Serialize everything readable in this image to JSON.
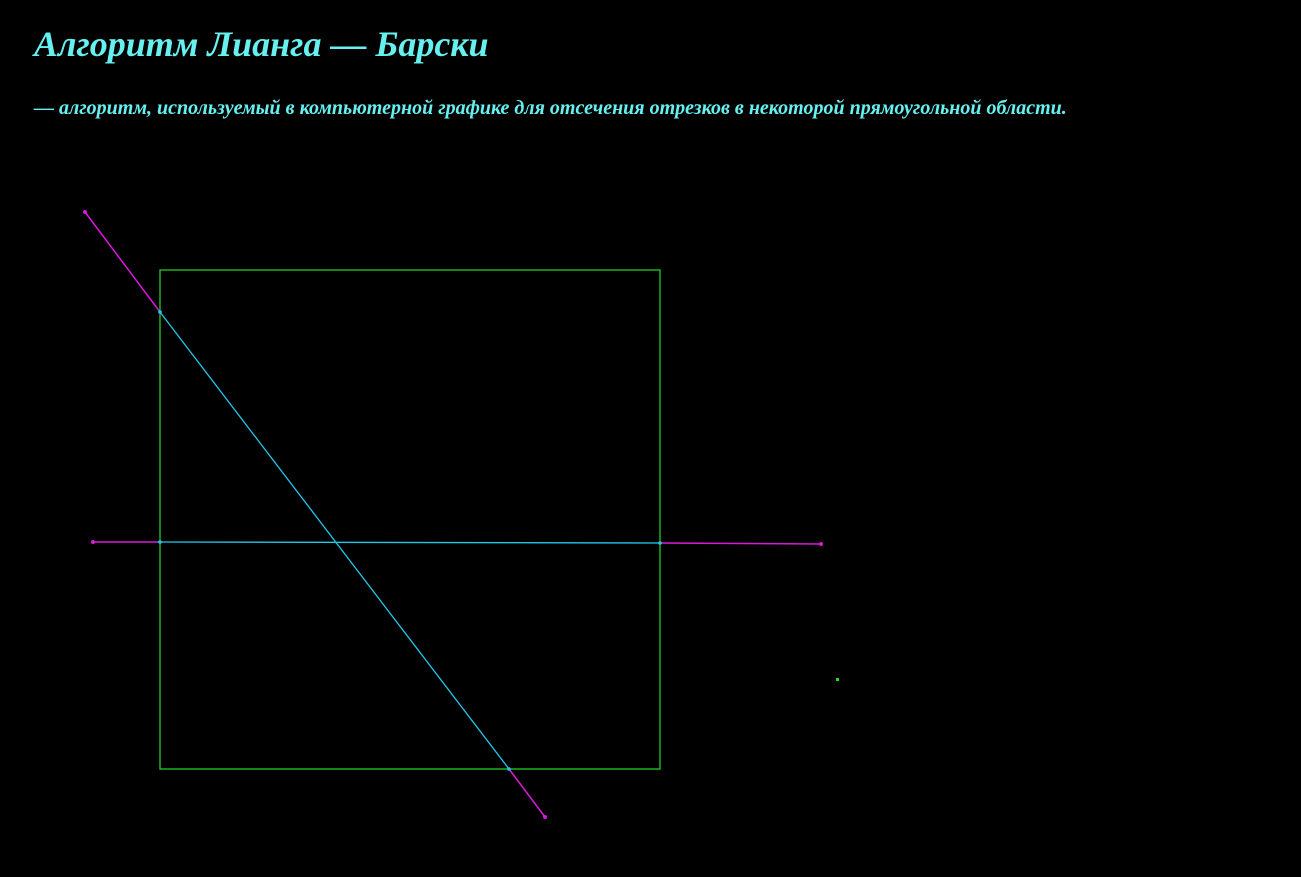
{
  "header": {
    "title": "Алгоритм Лианга — Барски",
    "subtitle": "— алгоритм, используемый в компьютерной графике для отсечения отрезков в некоторой прямоугольной области."
  },
  "colors": {
    "background": "#000000",
    "text": "#66f0f0",
    "clip_window": "#22cc22",
    "outside_segment": "#d81ad8",
    "clipped_segment": "#22c8e8",
    "marker": "#22dd22"
  },
  "icons": {
    "endpoint": "dot",
    "marker": "green-dot"
  }
}
